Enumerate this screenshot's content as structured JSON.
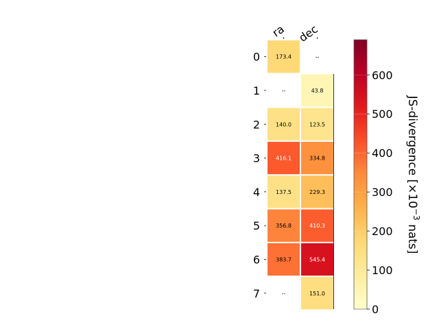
{
  "chart_data": {
    "type": "heatmap",
    "x_categories": [
      "ra",
      "dec"
    ],
    "y_categories": [
      "0",
      "1",
      "2",
      "3",
      "4",
      "5",
      "6",
      "7"
    ],
    "values": [
      [
        173.4,
        null
      ],
      [
        null,
        43.8
      ],
      [
        140.0,
        123.5
      ],
      [
        416.1,
        334.8
      ],
      [
        137.5,
        229.3
      ],
      [
        356.8,
        410.3
      ],
      [
        383.7,
        545.4
      ],
      [
        null,
        151.0
      ]
    ],
    "cell_labels": [
      [
        "173.4",
        "--"
      ],
      [
        "--",
        "43.8"
      ],
      [
        "140.0",
        "123.5"
      ],
      [
        "416.1",
        "334.8"
      ],
      [
        "137.5",
        "229.3"
      ],
      [
        "356.8",
        "410.3"
      ],
      [
        "383.7",
        "545.4"
      ],
      [
        "--",
        "151.0"
      ]
    ],
    "colorbar": {
      "label_prefix": "JS-divergence [×10",
      "label_exponent": "−3",
      "label_suffix": " nats]",
      "range": [
        0,
        690
      ],
      "ticks": [
        "0",
        "100",
        "200",
        "300",
        "400",
        "500",
        "600"
      ],
      "colormap": "YlOrRd"
    }
  }
}
